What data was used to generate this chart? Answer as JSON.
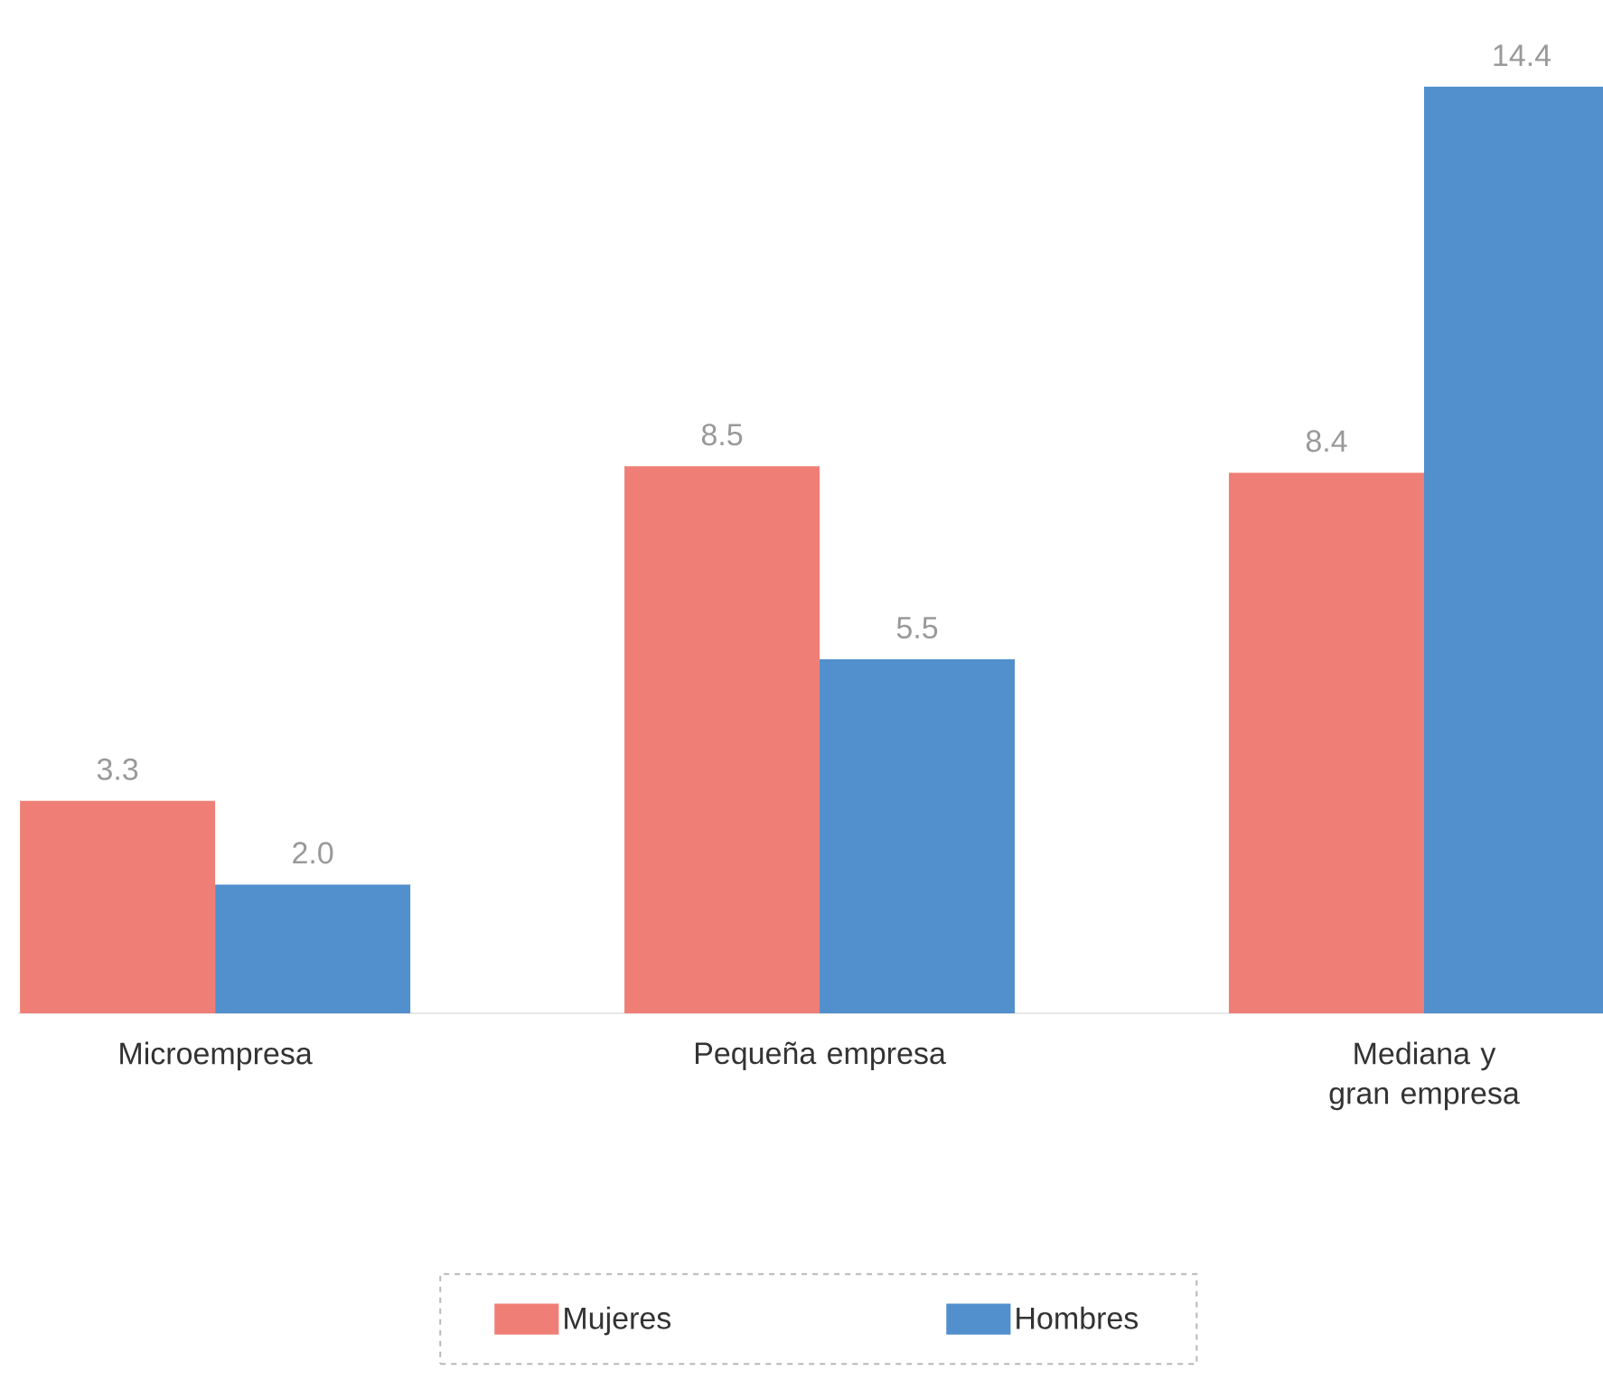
{
  "chart_data": {
    "type": "bar",
    "categories": [
      "Microempresa",
      "Pequeña empresa",
      "Mediana y gran empresa"
    ],
    "series": [
      {
        "name": "Mujeres",
        "color": "#ef7f76",
        "values": [
          3.3,
          8.5,
          8.4
        ],
        "value_labels": [
          "3.3",
          "8.5",
          "8.4"
        ]
      },
      {
        "name": "Hombres",
        "color": "#518fcd",
        "values": [
          2.0,
          5.5,
          14.4
        ],
        "value_labels": [
          "2.0",
          "5.5",
          "14.4"
        ]
      }
    ],
    "legend": "bottom"
  }
}
